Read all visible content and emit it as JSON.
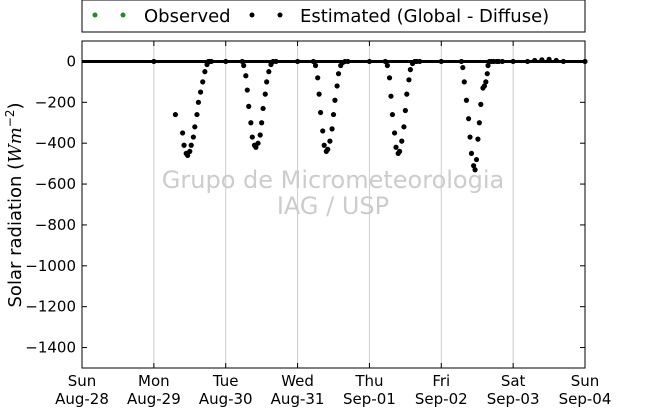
{
  "chart_data": {
    "type": "scatter",
    "ylabel_main": "Solar radiation (",
    "ylabel_unit": "Wm",
    "ylabel_exp": "−2",
    "ylabel_close": ")",
    "ylim": [
      -1500,
      100
    ],
    "yticks": [
      0,
      -200,
      -400,
      -600,
      -800,
      -1000,
      -1200,
      -1400
    ],
    "xlim": [
      0,
      7
    ],
    "x_unit": "days since Sun Aug-28 00:00",
    "xticks": [
      {
        "day": "Sun",
        "date": "Aug-28"
      },
      {
        "day": "Mon",
        "date": "Aug-29"
      },
      {
        "day": "Tue",
        "date": "Aug-30"
      },
      {
        "day": "Wed",
        "date": "Aug-31"
      },
      {
        "day": "Thu",
        "date": "Sep-01"
      },
      {
        "day": "Fri",
        "date": "Sep-02"
      },
      {
        "day": "Sat",
        "date": "Sep-03"
      },
      {
        "day": "Sun",
        "date": "Sep-04"
      }
    ],
    "grid": "vertical",
    "legend_placement": "top",
    "watermark": [
      "Grupo de Micrometeorologia",
      "IAG / USP"
    ],
    "series": [
      {
        "name": "Observed",
        "color": "#228b22",
        "x": [],
        "y": []
      },
      {
        "name": "Estimated (Global - Diffuse)",
        "color": "#000000",
        "x": [
          1.0,
          1.3,
          1.4,
          1.42,
          1.45,
          1.47,
          1.5,
          1.52,
          1.55,
          1.57,
          1.6,
          1.62,
          1.65,
          1.68,
          1.71,
          1.74,
          1.76,
          1.78,
          1.8,
          2.0,
          2.23,
          2.25,
          2.28,
          2.3,
          2.32,
          2.35,
          2.37,
          2.4,
          2.42,
          2.45,
          2.48,
          2.5,
          2.52,
          2.55,
          2.57,
          2.6,
          2.63,
          2.66,
          2.7,
          3.0,
          3.22,
          3.25,
          3.28,
          3.3,
          3.32,
          3.35,
          3.37,
          3.4,
          3.42,
          3.45,
          3.48,
          3.5,
          3.52,
          3.55,
          3.57,
          3.6,
          3.63,
          3.66,
          3.7,
          4.0,
          4.22,
          4.25,
          4.28,
          4.3,
          4.32,
          4.35,
          4.37,
          4.4,
          4.42,
          4.45,
          4.48,
          4.5,
          4.52,
          4.55,
          4.57,
          4.6,
          4.63,
          4.66,
          4.7,
          5.0,
          5.28,
          5.3,
          5.32,
          5.35,
          5.38,
          5.4,
          5.42,
          5.45,
          5.47,
          5.49,
          5.51,
          5.53,
          5.55,
          5.58,
          5.6,
          5.62,
          5.64,
          5.65,
          5.67,
          5.7,
          5.73,
          5.77,
          5.8,
          5.85,
          6.0,
          6.2,
          6.3,
          6.4,
          6.5,
          6.6,
          6.7,
          7.0
        ],
        "y": [
          0,
          -260,
          -350,
          -410,
          -450,
          -460,
          -440,
          -410,
          -370,
          -320,
          -260,
          -200,
          -150,
          -100,
          -50,
          -15,
          0,
          0,
          0,
          0,
          0,
          -20,
          -70,
          -140,
          -220,
          -300,
          -370,
          -410,
          -420,
          -400,
          -360,
          -300,
          -230,
          -160,
          -100,
          -50,
          -15,
          0,
          0,
          0,
          0,
          -20,
          -80,
          -160,
          -250,
          -340,
          -410,
          -440,
          -430,
          -390,
          -330,
          -260,
          -190,
          -120,
          -60,
          -20,
          -5,
          0,
          0,
          0,
          0,
          -20,
          -80,
          -170,
          -260,
          -350,
          -420,
          -450,
          -440,
          -390,
          -320,
          -240,
          -160,
          -90,
          -40,
          -10,
          0,
          0,
          0,
          0,
          0,
          -30,
          -100,
          -190,
          -280,
          -370,
          -450,
          -510,
          -530,
          -480,
          -380,
          -300,
          -210,
          -130,
          -120,
          -100,
          -60,
          -20,
          0,
          0,
          0,
          0,
          0,
          0,
          0,
          0,
          5,
          8,
          10,
          5,
          0,
          0
        ]
      }
    ]
  }
}
